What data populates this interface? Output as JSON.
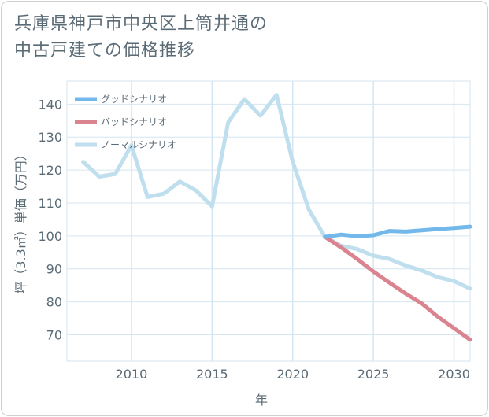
{
  "title_line1": "兵庫県神戸市中央区上筒井通の",
  "title_line2": "中古戸建ての価格推移",
  "colors": {
    "good": "#73b8ea",
    "bad": "#d9848f",
    "normal": "#bfdeee",
    "grid": "#d4e6f1",
    "text": "#5b6b76"
  },
  "chart_data": {
    "type": "line",
    "xlabel": "年",
    "ylabel": "坪（3.3㎡）単価（万円）",
    "xlim": [
      2006,
      2031
    ],
    "ylim": [
      62,
      147
    ],
    "x_ticks": [
      2010,
      2015,
      2020,
      2025,
      2030
    ],
    "y_ticks": [
      70,
      80,
      90,
      100,
      110,
      120,
      130,
      140
    ],
    "legend_position": "top-left",
    "series": [
      {
        "name": "グッドシナリオ",
        "key": "good",
        "x": [
          2022,
          2023,
          2024,
          2025,
          2026,
          2027,
          2028,
          2029,
          2030,
          2031
        ],
        "values": [
          99.7,
          100.4,
          99.9,
          100.2,
          101.5,
          101.3,
          101.7,
          102.1,
          102.4,
          102.8
        ]
      },
      {
        "name": "バッドシナリオ",
        "key": "bad",
        "x": [
          2022,
          2023,
          2024,
          2025,
          2026,
          2027,
          2028,
          2029,
          2030,
          2031
        ],
        "values": [
          99.7,
          96.5,
          93.0,
          89.2,
          85.8,
          82.5,
          79.5,
          75.5,
          72.0,
          68.5
        ]
      },
      {
        "name": "ノーマルシナリオ",
        "key": "normal",
        "x": [
          2007,
          2008,
          2009,
          2010,
          2011,
          2012,
          2013,
          2014,
          2015,
          2016,
          2017,
          2018,
          2019,
          2020,
          2021,
          2022,
          2023,
          2024,
          2025,
          2026,
          2027,
          2028,
          2029,
          2030,
          2031
        ],
        "values": [
          122.5,
          118.0,
          118.8,
          127.5,
          111.8,
          112.8,
          116.5,
          113.8,
          109.0,
          134.5,
          141.5,
          136.5,
          142.8,
          122.5,
          108.0,
          99.7,
          97.0,
          96.0,
          94.0,
          93.0,
          91.0,
          89.5,
          87.5,
          86.3,
          84.0
        ]
      }
    ]
  }
}
